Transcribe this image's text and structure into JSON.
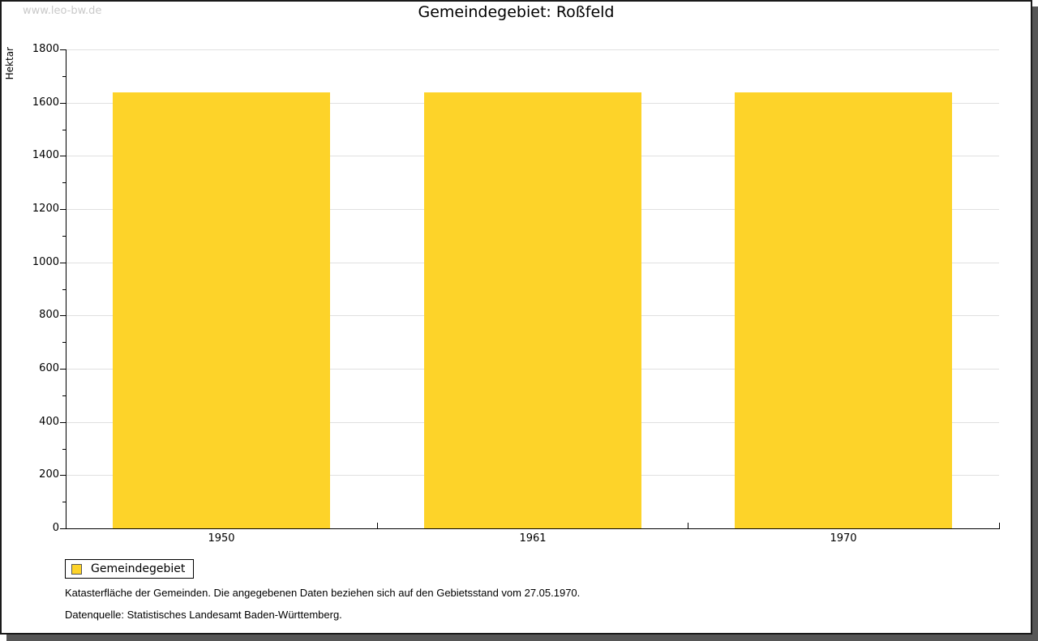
{
  "watermark": "www.leo-bw.de",
  "title": "Gemeindegebiet: Roßfeld",
  "chart_data": {
    "type": "bar",
    "title": "Gemeindegebiet: Roßfeld",
    "categories": [
      "1950",
      "1961",
      "1970"
    ],
    "series": [
      {
        "name": "Gemeindegebiet",
        "values": [
          1638,
          1638,
          1638
        ]
      }
    ],
    "xlabel": "",
    "ylabel": "Hektar",
    "ylim": [
      0,
      1800
    ],
    "ytick_step": 200,
    "yminor_step": 100,
    "grid": "horizontal-major",
    "legend_position": "bottom-left",
    "bar_color": "#fdd329"
  },
  "legend": {
    "items": [
      {
        "label": "Gemeindegebiet",
        "color": "#fdd329"
      }
    ]
  },
  "footer": {
    "line1": "Katasterfläche der Gemeinden. Die angegebenen Daten beziehen sich auf den Gebietsstand vom 27.05.1970.",
    "line2": "Datenquelle: Statistisches Landesamt Baden-Württemberg."
  },
  "colors": {
    "bar": "#fdd329",
    "gridline": "#e0e0e0",
    "axis": "#000000",
    "watermark": "#c9c9c9",
    "frame_border": "#1a1a1a",
    "frame_shadow": "#565656",
    "background": "#ffffff"
  }
}
